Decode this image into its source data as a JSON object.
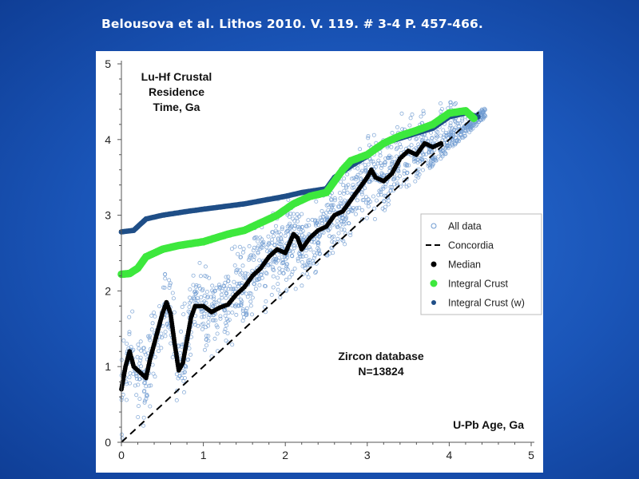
{
  "header": {
    "citation": "Belousova et al. Lithos 2010. V. 119. # 3-4 P. 457-466."
  },
  "colors": {
    "background": "#1a55b8",
    "all_data": "#6f9bd1",
    "median": "#000000",
    "integral_crust": "#3de83d",
    "integral_crust_w": "#1f4e87",
    "concordia": "#000000"
  },
  "chart_data": {
    "type": "scatter",
    "xlabel": "U-Pb Age, Ga",
    "ylabel": "Lu-Hf Crustal Residence Time, Ga",
    "xlim": [
      0,
      5
    ],
    "ylim": [
      0,
      5
    ],
    "x_ticks": [
      "0",
      "1",
      "2",
      "3",
      "4",
      "5"
    ],
    "y_ticks": [
      "0",
      "1",
      "2",
      "3",
      "4",
      "5"
    ],
    "grid": false,
    "legend_position": "right",
    "annotations": [
      "Lu-Hf Crustal",
      "Residence",
      "Time, Ga",
      "Zircon database",
      "N=13824",
      "U-Pb Age, Ga"
    ],
    "legend": [
      {
        "label": "All data",
        "marker": "open-circle"
      },
      {
        "label": "Concordia",
        "marker": "dashed-line"
      },
      {
        "label": "Median",
        "marker": "filled-circle"
      },
      {
        "label": "Integral Crust",
        "marker": "filled-circle"
      },
      {
        "label": "Integral Crust (w)",
        "marker": "filled-circle"
      }
    ],
    "series": [
      {
        "name": "Concordia",
        "x": [
          0.0,
          4.4
        ],
        "y": [
          0.0,
          4.4
        ]
      },
      {
        "name": "Integral Crust (w)",
        "x": [
          0.0,
          0.15,
          0.3,
          0.5,
          0.8,
          1.0,
          1.5,
          2.0,
          2.2,
          2.5,
          2.6,
          2.8,
          3.0,
          3.2,
          3.5,
          3.8,
          4.0,
          4.2,
          4.35
        ],
        "y": [
          2.78,
          2.8,
          2.95,
          3.0,
          3.05,
          3.08,
          3.15,
          3.25,
          3.3,
          3.35,
          3.5,
          3.65,
          3.78,
          3.95,
          4.05,
          4.15,
          4.3,
          4.35,
          4.3
        ]
      },
      {
        "name": "Integral Crust",
        "x": [
          0.0,
          0.1,
          0.2,
          0.3,
          0.5,
          0.7,
          1.0,
          1.3,
          1.5,
          1.7,
          1.9,
          2.1,
          2.3,
          2.5,
          2.6,
          2.7,
          2.8,
          3.0,
          3.2,
          3.4,
          3.6,
          3.8,
          4.0,
          4.2,
          4.3
        ],
        "y": [
          2.22,
          2.23,
          2.3,
          2.45,
          2.55,
          2.6,
          2.65,
          2.75,
          2.8,
          2.9,
          3.0,
          3.15,
          3.25,
          3.3,
          3.45,
          3.6,
          3.72,
          3.8,
          3.95,
          4.05,
          4.12,
          4.2,
          4.35,
          4.38,
          4.28
        ]
      },
      {
        "name": "Median",
        "x": [
          0.0,
          0.05,
          0.1,
          0.15,
          0.2,
          0.3,
          0.35,
          0.4,
          0.45,
          0.5,
          0.55,
          0.6,
          0.65,
          0.7,
          0.75,
          0.8,
          0.85,
          0.9,
          1.0,
          1.1,
          1.2,
          1.3,
          1.4,
          1.5,
          1.6,
          1.7,
          1.8,
          1.9,
          2.0,
          2.1,
          2.15,
          2.2,
          2.3,
          2.4,
          2.5,
          2.6,
          2.7,
          2.8,
          2.9,
          3.0,
          3.05,
          3.1,
          3.2,
          3.3,
          3.4,
          3.5,
          3.6,
          3.7,
          3.8,
          3.9
        ],
        "y": [
          0.7,
          1.0,
          1.2,
          1.0,
          0.95,
          0.85,
          1.1,
          1.3,
          1.5,
          1.7,
          1.85,
          1.7,
          1.3,
          0.95,
          1.05,
          1.35,
          1.65,
          1.8,
          1.8,
          1.72,
          1.78,
          1.82,
          1.95,
          2.05,
          2.2,
          2.3,
          2.45,
          2.55,
          2.5,
          2.75,
          2.7,
          2.55,
          2.7,
          2.8,
          2.85,
          3.0,
          3.05,
          3.2,
          3.35,
          3.5,
          3.6,
          3.5,
          3.45,
          3.55,
          3.75,
          3.85,
          3.8,
          3.95,
          3.9,
          3.95
        ]
      }
    ]
  }
}
